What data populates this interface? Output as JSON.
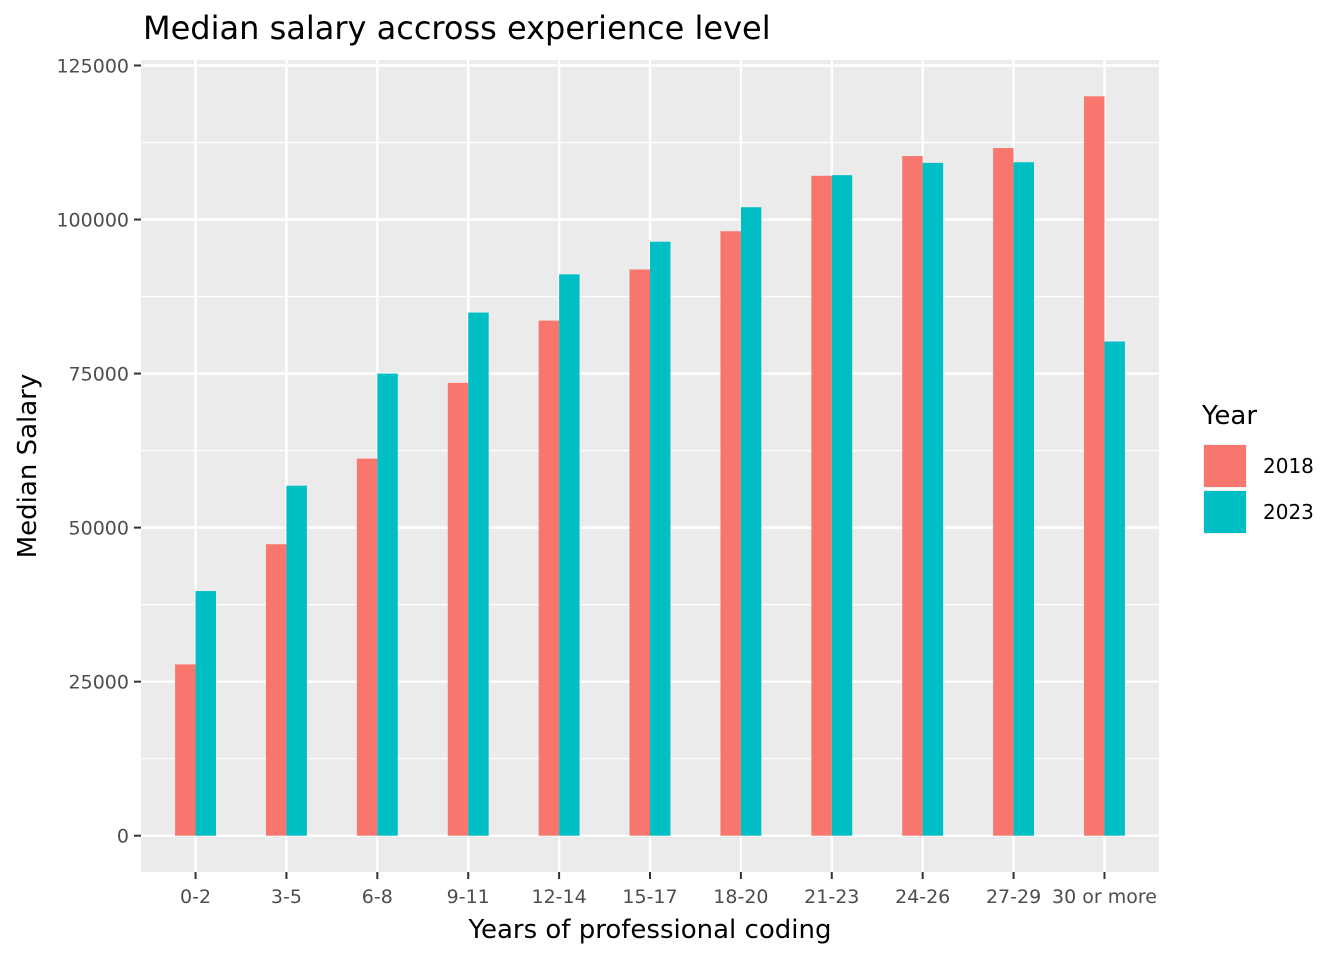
{
  "chart_data": {
    "type": "bar",
    "title": "Median salary accross experience level",
    "xlabel": "Years of professional coding",
    "ylabel": "Median Salary",
    "categories": [
      "0-2",
      "3-5",
      "6-8",
      "9-11",
      "12-14",
      "15-17",
      "18-20",
      "21-23",
      "24-26",
      "27-29",
      "30 or more"
    ],
    "series": [
      {
        "name": "2018",
        "color": "#F8766D",
        "values": [
          27800,
          47300,
          61200,
          73500,
          83600,
          91900,
          98100,
          107100,
          110300,
          111600,
          120000
        ]
      },
      {
        "name": "2023",
        "color": "#00BFC4",
        "values": [
          39700,
          56800,
          75000,
          84900,
          91100,
          96400,
          102000,
          107200,
          109200,
          109300,
          80200
        ]
      }
    ],
    "ylim": [
      -5894,
      125894
    ],
    "yticks": [
      0,
      25000,
      50000,
      75000,
      100000,
      125000
    ],
    "ytick_labels": [
      "0",
      "25000",
      "50000",
      "75000",
      "100000",
      "125000"
    ],
    "legend": {
      "title": "Year",
      "position": "right"
    },
    "grid": true
  }
}
